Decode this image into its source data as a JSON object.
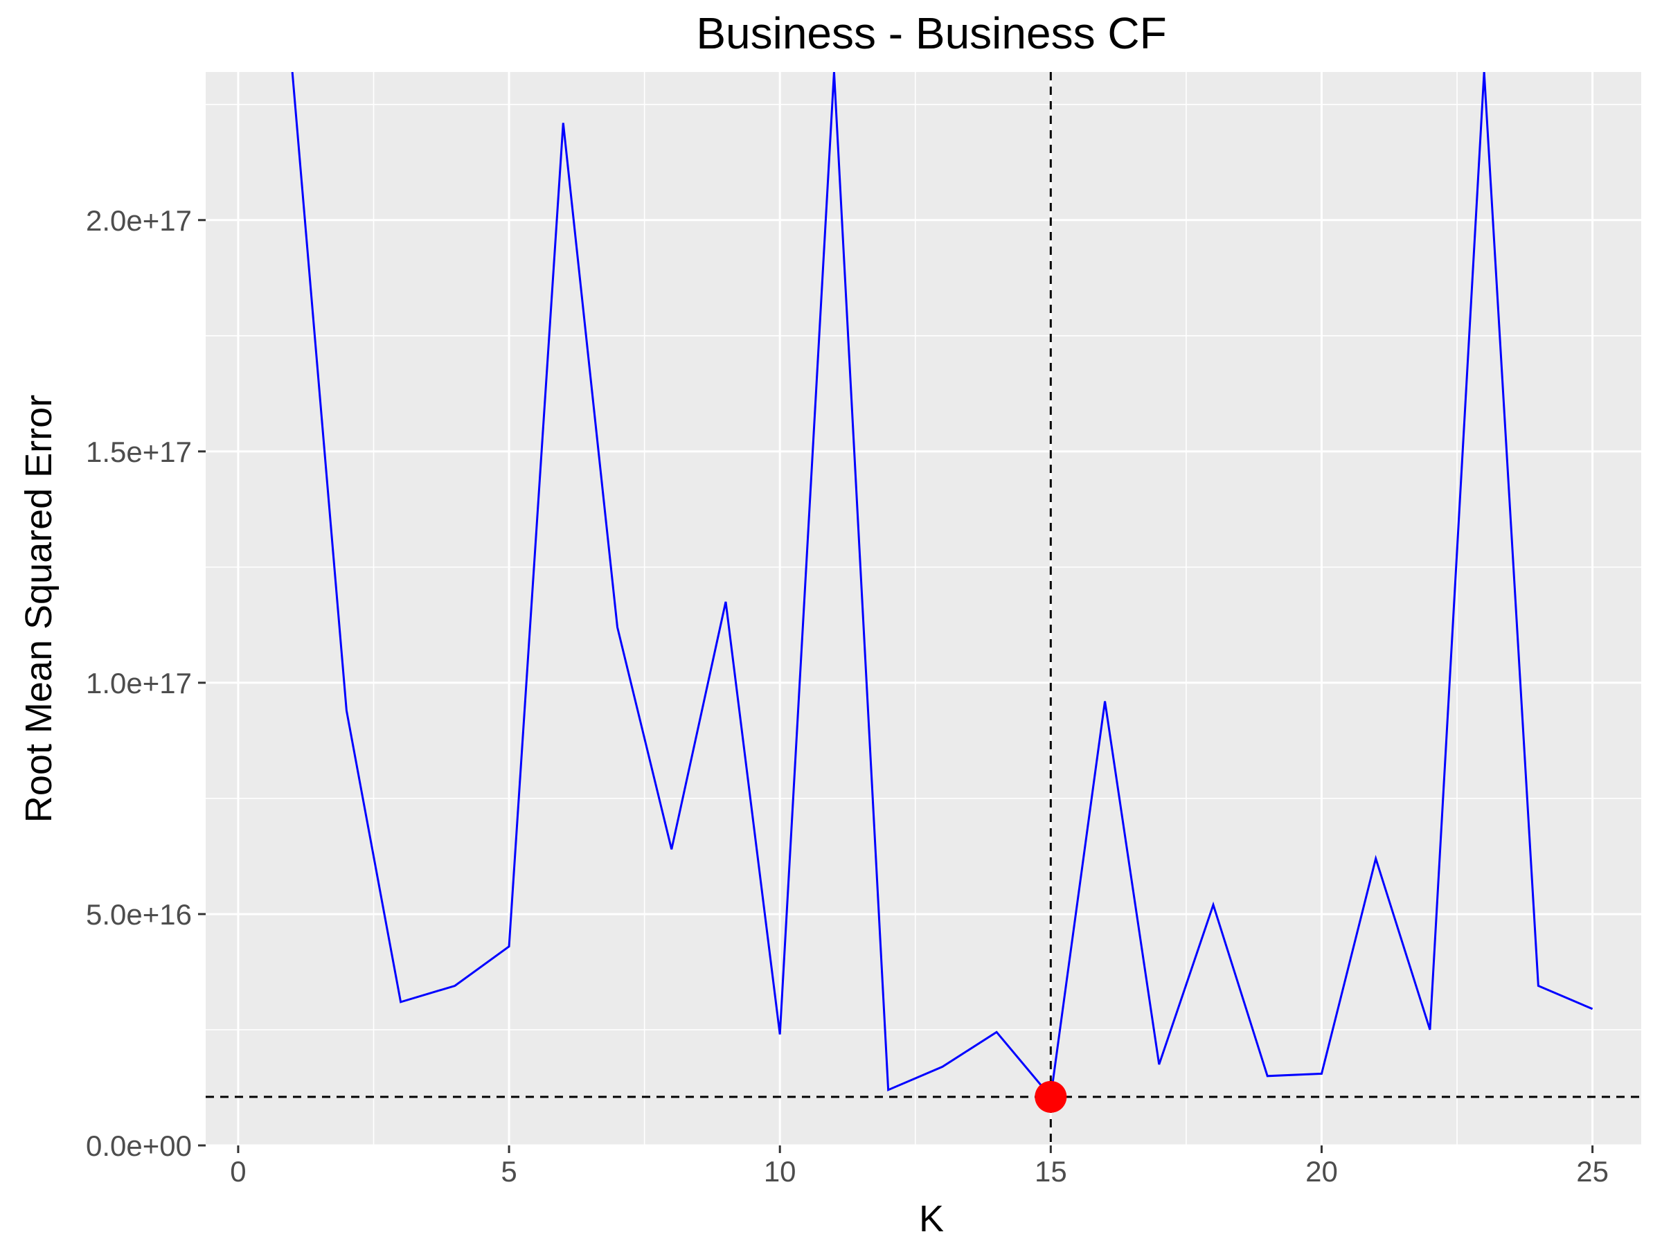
{
  "chart_data": {
    "type": "line",
    "title": "Business - Business CF",
    "xlabel": "K",
    "ylabel": "Root Mean Squared Error",
    "x": [
      1,
      2,
      3,
      4,
      5,
      6,
      7,
      8,
      9,
      10,
      11,
      12,
      13,
      14,
      15,
      16,
      17,
      18,
      19,
      20,
      21,
      22,
      23,
      24,
      25
    ],
    "series": [
      {
        "values": [
          2.32e+17,
          9.4e+16,
          3.1e+16,
          3.45e+16,
          4.3e+16,
          2.21e+17,
          1.12e+17,
          6.4e+16,
          1.175e+17,
          2.4e+16,
          2.32e+17,
          1.2e+16,
          1.7e+16,
          2.45e+16,
          1.05e+16,
          9.6e+16,
          1.75e+16,
          5.2e+16,
          1.5e+16,
          1.55e+16,
          6.2e+16,
          2.5e+16,
          2.32e+17,
          3.45e+16,
          2.95e+16
        ]
      }
    ],
    "highlight_point": {
      "x": 15,
      "y": 1.05e+16
    },
    "reference_lines": {
      "vertical_x": 15,
      "horizontal_y": 1.05e+16
    },
    "xlim": [
      -0.6,
      25.9
    ],
    "ylim": [
      0,
      2.32e+17
    ],
    "xticks": [
      0,
      5,
      10,
      15,
      20,
      25
    ],
    "xtick_labels": [
      "0",
      "5",
      "10",
      "15",
      "20",
      "25"
    ],
    "yticks": [
      0,
      5e+16,
      1e+17,
      1.5e+17,
      2e+17
    ],
    "ytick_labels": [
      "0.0e+00",
      "5.0e+16",
      "1.0e+17",
      "1.5e+17",
      "2.0e+17"
    ],
    "grid": true,
    "colors": {
      "line": "#0000ff",
      "point": "#ff0000",
      "panel": "#ebebeb",
      "grid": "#ffffff",
      "reference": "#000000"
    }
  }
}
